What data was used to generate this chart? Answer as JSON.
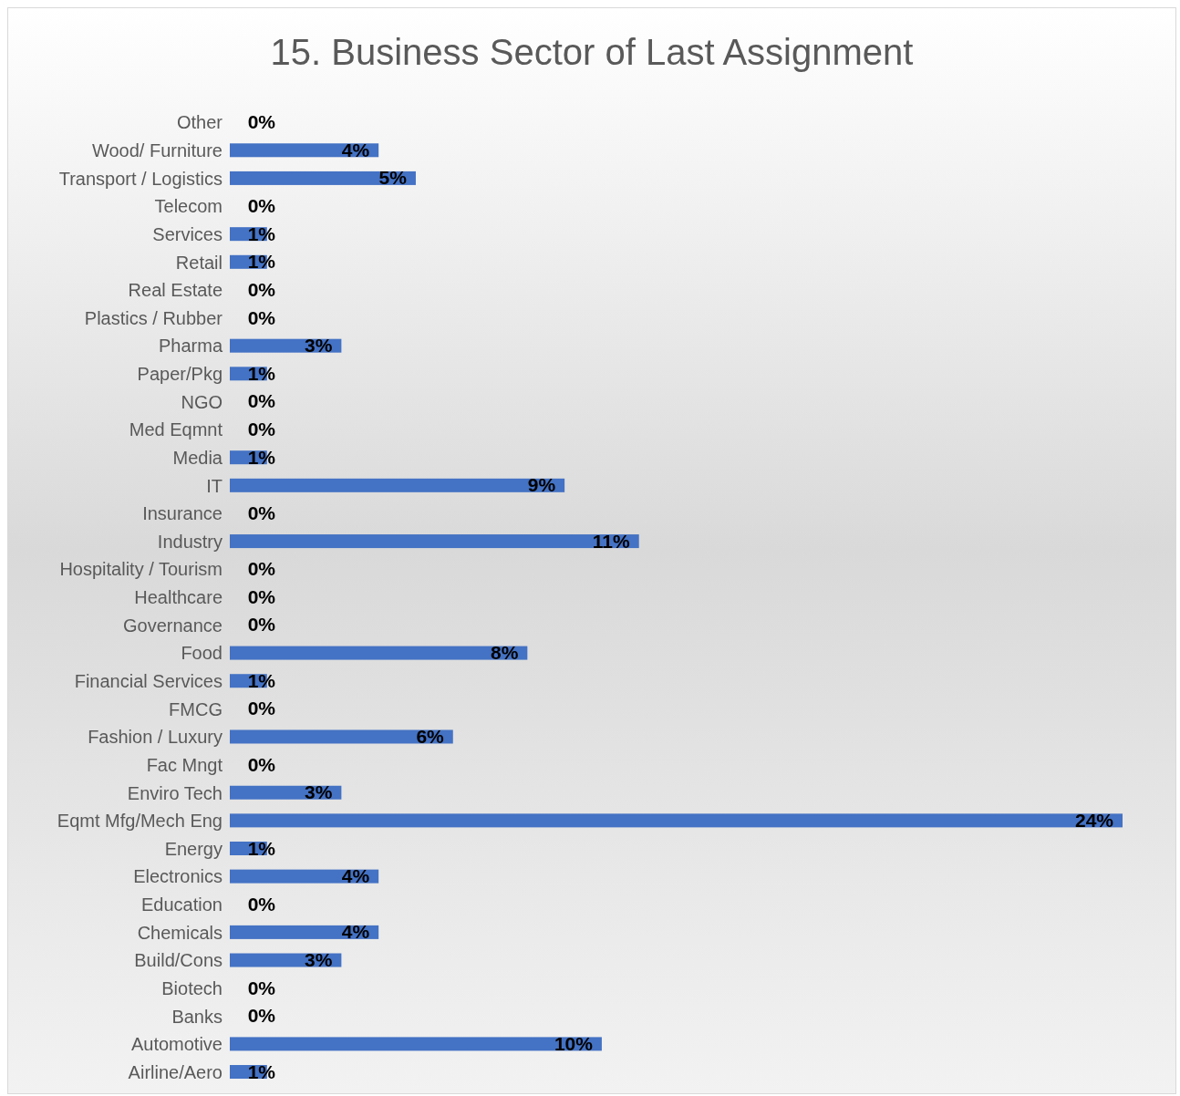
{
  "chart_data": {
    "type": "bar",
    "orientation": "horizontal",
    "title": "15.  Business Sector of Last Assignment",
    "categories": [
      "Other",
      "Wood/ Furniture",
      "Transport / Logistics",
      "Telecom",
      "Services",
      "Retail",
      "Real Estate",
      "Plastics / Rubber",
      "Pharma",
      "Paper/Pkg",
      "NGO",
      "Med Eqmnt",
      "Media",
      "IT",
      "Insurance",
      "Industry",
      "Hospitality / Tourism",
      "Healthcare",
      "Governance",
      "Food",
      "Financial Services",
      "FMCG",
      "Fashion / Luxury",
      "Fac Mngt",
      "Enviro Tech",
      "Eqmt Mfg/Mech Eng",
      "Energy",
      "Electronics",
      "Education",
      "Chemicals",
      "Build/Cons",
      "Biotech",
      "Banks",
      "Automotive",
      "Airline/Aero"
    ],
    "values": [
      0,
      4,
      5,
      0,
      1,
      1,
      0,
      0,
      3,
      1,
      0,
      0,
      1,
      9,
      0,
      11,
      0,
      0,
      0,
      8,
      1,
      0,
      6,
      0,
      3,
      24,
      1,
      4,
      0,
      4,
      3,
      0,
      0,
      10,
      1
    ],
    "value_labels": [
      "0%",
      "4%",
      "5%",
      "0%",
      "1%",
      "1%",
      "0%",
      "0%",
      "3%",
      "1%",
      "0%",
      "0%",
      "1%",
      "9%",
      "0%",
      "11%",
      "0%",
      "0%",
      "0%",
      "8%",
      "1%",
      "0%",
      "6%",
      "0%",
      "3%",
      "24%",
      "1%",
      "4%",
      "0%",
      "4%",
      "3%",
      "0%",
      "0%",
      "10%",
      "1%"
    ],
    "color": "#4472c4",
    "grid": false,
    "legend": false
  }
}
